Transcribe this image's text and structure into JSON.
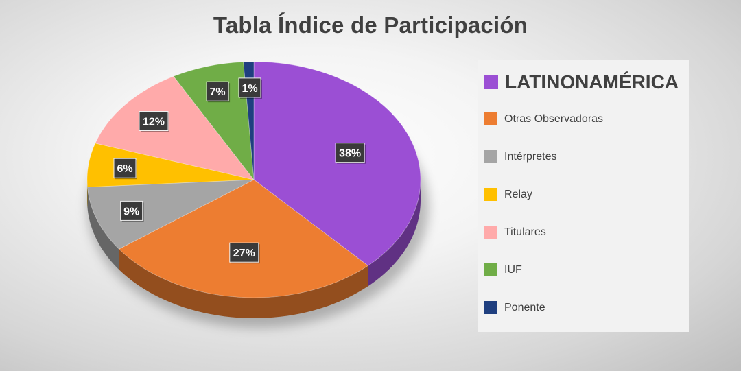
{
  "title": "Tabla Índice de Participación",
  "chart_data": {
    "type": "pie",
    "title": "Tabla Índice de Participación",
    "legend_position": "right",
    "slices": [
      {
        "label": "LATINONAMÉRICA",
        "value": 38,
        "data_label": "38%",
        "color": "#9b4fd4"
      },
      {
        "label": "Otras Observadoras",
        "value": 27,
        "data_label": "27%",
        "color": "#ed7d31"
      },
      {
        "label": "Intérpretes",
        "value": 9,
        "data_label": "9%",
        "color": "#a5a5a5"
      },
      {
        "label": "Relay",
        "value": 6,
        "data_label": "6%",
        "color": "#ffc000"
      },
      {
        "label": "Titulares",
        "value": 12,
        "data_label": "12%",
        "color": "#ffaaaa"
      },
      {
        "label": "IUF",
        "value": 7,
        "data_label": "7%",
        "color": "#70ad47"
      },
      {
        "label": "Ponente",
        "value": 1,
        "data_label": "1%",
        "color": "#1f3f7f"
      }
    ]
  }
}
